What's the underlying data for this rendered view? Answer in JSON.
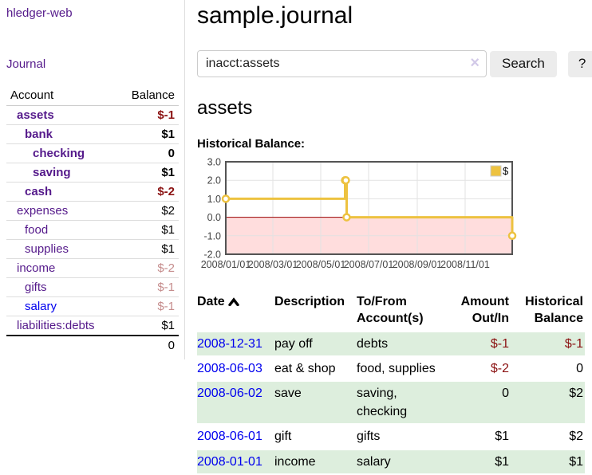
{
  "app": {
    "title": "hledger-web"
  },
  "colors": {
    "link_visited_purple": "#551a8b",
    "link_blue": "#0000ee",
    "negative_red": "#8b1212",
    "faded_negative": "#c58c8c",
    "row_stripe_green": "#ddeedd",
    "chart_series_yellow": "#edc240",
    "chart_negative_region": "#ffdddd",
    "chart_zero_line": "#990000"
  },
  "sidebar": {
    "journal_link": "Journal",
    "accounts_table": {
      "headers": {
        "account": "Account",
        "balance": "Balance"
      },
      "rows": [
        {
          "name": "assets",
          "balance": "$-1"
        },
        {
          "name": "bank",
          "balance": "$1"
        },
        {
          "name": "checking",
          "balance": "0"
        },
        {
          "name": "saving",
          "balance": "$1"
        },
        {
          "name": "cash",
          "balance": "$-2"
        },
        {
          "name": "expenses",
          "balance": "$2"
        },
        {
          "name": "food",
          "balance": "$1"
        },
        {
          "name": "supplies",
          "balance": "$1"
        },
        {
          "name": "income",
          "balance": "$-2"
        },
        {
          "name": "gifts",
          "balance": "$-1"
        },
        {
          "name": "salary",
          "balance": "$-1"
        },
        {
          "name": "liabilities:debts",
          "balance": "$1"
        }
      ],
      "total": "0"
    }
  },
  "header": {
    "title": "sample.journal"
  },
  "search": {
    "query": "inacct:assets",
    "clear_icon": "×",
    "search_button": "Search",
    "help_button": "?"
  },
  "account_page": {
    "title": "assets",
    "chart_label": "Historical Balance:"
  },
  "chart_data": {
    "type": "line",
    "title": "Historical Balance",
    "steps": true,
    "xlim_days": [
      0,
      365
    ],
    "ylim": [
      -2,
      3
    ],
    "y_ticks": [
      3.0,
      2.0,
      1.0,
      0.0,
      -1.0,
      -2.0
    ],
    "x_ticks": [
      {
        "label": "2008/01/01",
        "day": 0
      },
      {
        "label": "2008/03/01",
        "day": 60
      },
      {
        "label": "2008/05/01",
        "day": 121
      },
      {
        "label": "2008/07/01",
        "day": 182
      },
      {
        "label": "2008/09/01",
        "day": 244
      },
      {
        "label": "2008/11/01",
        "day": 305
      }
    ],
    "series": [
      {
        "name": "$",
        "color": "#edc240",
        "points": [
          {
            "date": "2008-01-01",
            "day": 0,
            "value": 1
          },
          {
            "date": "2008-06-01",
            "day": 152,
            "value": 2
          },
          {
            "date": "2008-06-02",
            "day": 153,
            "value": 2
          },
          {
            "date": "2008-06-03",
            "day": 154,
            "value": 0
          },
          {
            "date": "2008-12-31",
            "day": 365,
            "value": -1
          }
        ]
      }
    ],
    "legend": {
      "label": "$",
      "position": "top-right"
    },
    "grid": true,
    "negative_region_color": "#ffdddd",
    "zero_line_color": "#990000"
  },
  "register_table": {
    "headers": {
      "date": "Date",
      "description": "Description",
      "accounts": "To/From Account(s)",
      "amount": "Amount Out/In",
      "balance": "Historical Balance"
    },
    "rows": [
      {
        "date": "2008-12-31",
        "description": "pay off",
        "accounts": "debts",
        "amount": "$-1",
        "balance": "$-1"
      },
      {
        "date": "2008-06-03",
        "description": "eat & shop",
        "accounts": "food, supplies",
        "amount": "$-2",
        "balance": "0"
      },
      {
        "date": "2008-06-02",
        "description": "save",
        "accounts": "saving, checking",
        "amount": "0",
        "balance": "$2"
      },
      {
        "date": "2008-06-01",
        "description": "gift",
        "accounts": "gifts",
        "amount": "$1",
        "balance": "$2"
      },
      {
        "date": "2008-01-01",
        "description": "income",
        "accounts": "salary",
        "amount": "$1",
        "balance": "$1"
      }
    ]
  }
}
